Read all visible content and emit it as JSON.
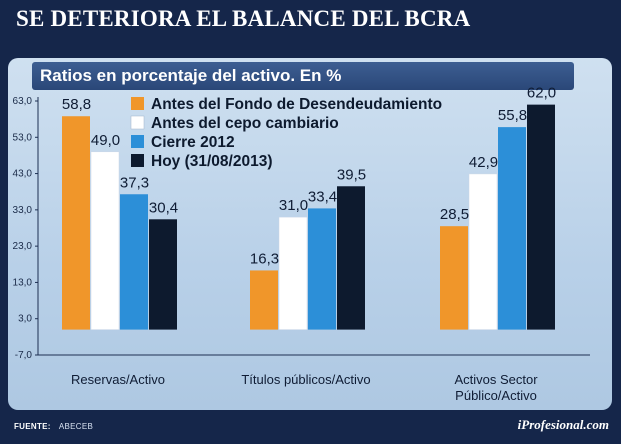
{
  "title": "SE DETERIORA EL BALANCE DEL BCRA",
  "subtitle": "Ratios en porcentaje del activo. En %",
  "footer": {
    "source_label": "FUENTE:",
    "source_value": "ABECEB",
    "brand": "iProfesional.com"
  },
  "colors": {
    "orange": "#f0962a",
    "white": "#ffffff",
    "blue": "#2c8fd8",
    "navy": "#0d1a2e"
  },
  "chart_data": {
    "type": "bar",
    "title": "Ratios en porcentaje del activo. En %",
    "categories": [
      "Reservas/Activo",
      "Títulos públicos/Activo",
      "Activos Sector|Público/Activo"
    ],
    "series": [
      {
        "name": "Antes del Fondo de Desendeudamiento",
        "color": "#f0962a",
        "values": [
          58.8,
          16.3,
          28.5
        ],
        "labels": [
          "58,8",
          "16,3",
          "28,5"
        ]
      },
      {
        "name": "Antes del cepo cambiario",
        "color": "#ffffff",
        "values": [
          49.0,
          31.0,
          42.9
        ],
        "labels": [
          "49,0",
          "31,0",
          "42,9"
        ]
      },
      {
        "name": "Cierre 2012",
        "color": "#2c8fd8",
        "values": [
          37.3,
          33.4,
          55.8
        ],
        "labels": [
          "37,3",
          "33,4",
          "55,8"
        ]
      },
      {
        "name": "Hoy (31/08/2013)",
        "color": "#0d1a2e",
        "values": [
          30.4,
          39.5,
          62.0
        ],
        "labels": [
          "30,4",
          "39,5",
          "62,0"
        ]
      }
    ],
    "yticks": [
      63,
      53,
      43,
      33,
      23,
      13,
      3,
      -7
    ],
    "ytick_labels": [
      "63,0",
      "53,0",
      "43,0",
      "33,0",
      "23,0",
      "13,0",
      "3,0",
      "-7,0"
    ],
    "ylim": [
      -7,
      63
    ],
    "grid": false,
    "legend_position": "top-center"
  }
}
